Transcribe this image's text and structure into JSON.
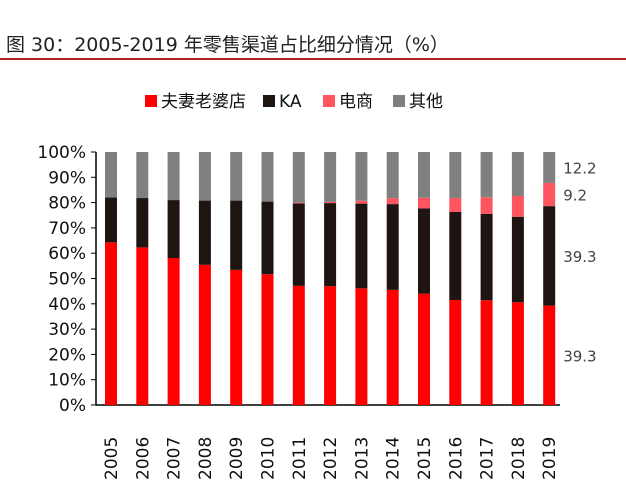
{
  "title": "图 30：2005-2019 年零售渠道占比细分情况（%）",
  "chart_data": {
    "type": "bar",
    "stacked": true,
    "categories": [
      "2005",
      "2006",
      "2007",
      "2008",
      "2009",
      "2010",
      "2011",
      "2012",
      "2013",
      "2014",
      "2015",
      "2016",
      "2017",
      "2018",
      "2019"
    ],
    "series": [
      {
        "name": "夫妻老婆店",
        "color": "#ff0000",
        "values": [
          64.3,
          62.3,
          58.1,
          55.4,
          53.4,
          51.7,
          47.1,
          47.0,
          46.1,
          45.5,
          44.0,
          41.5,
          41.4,
          40.6,
          39.3
        ]
      },
      {
        "name": "KA",
        "color": "#1e1412",
        "values": [
          17.7,
          19.5,
          22.9,
          25.4,
          27.4,
          28.7,
          32.6,
          32.8,
          33.5,
          33.9,
          33.7,
          34.8,
          34.1,
          33.8,
          39.3
        ]
      },
      {
        "name": "电商",
        "color": "#ff5560",
        "values": [
          0,
          0,
          0,
          0,
          0,
          0,
          0.3,
          0.5,
          1.1,
          2.3,
          4.2,
          5.5,
          6.6,
          8.2,
          9.2
        ]
      },
      {
        "name": "其他",
        "color": "#808080",
        "values": [
          18.0,
          18.2,
          19.0,
          19.2,
          19.2,
          19.6,
          20.0,
          19.7,
          19.3,
          18.3,
          18.1,
          18.2,
          17.9,
          17.4,
          12.2
        ]
      }
    ],
    "data_labels_2019": [
      "39.3",
      "39.3",
      "9.2",
      "12.2"
    ],
    "ylim": [
      0,
      100
    ],
    "yticks": [
      "0%",
      "10%",
      "20%",
      "30%",
      "40%",
      "50%",
      "60%",
      "70%",
      "80%",
      "90%",
      "100%"
    ],
    "legend_position": "top",
    "grid": false
  }
}
